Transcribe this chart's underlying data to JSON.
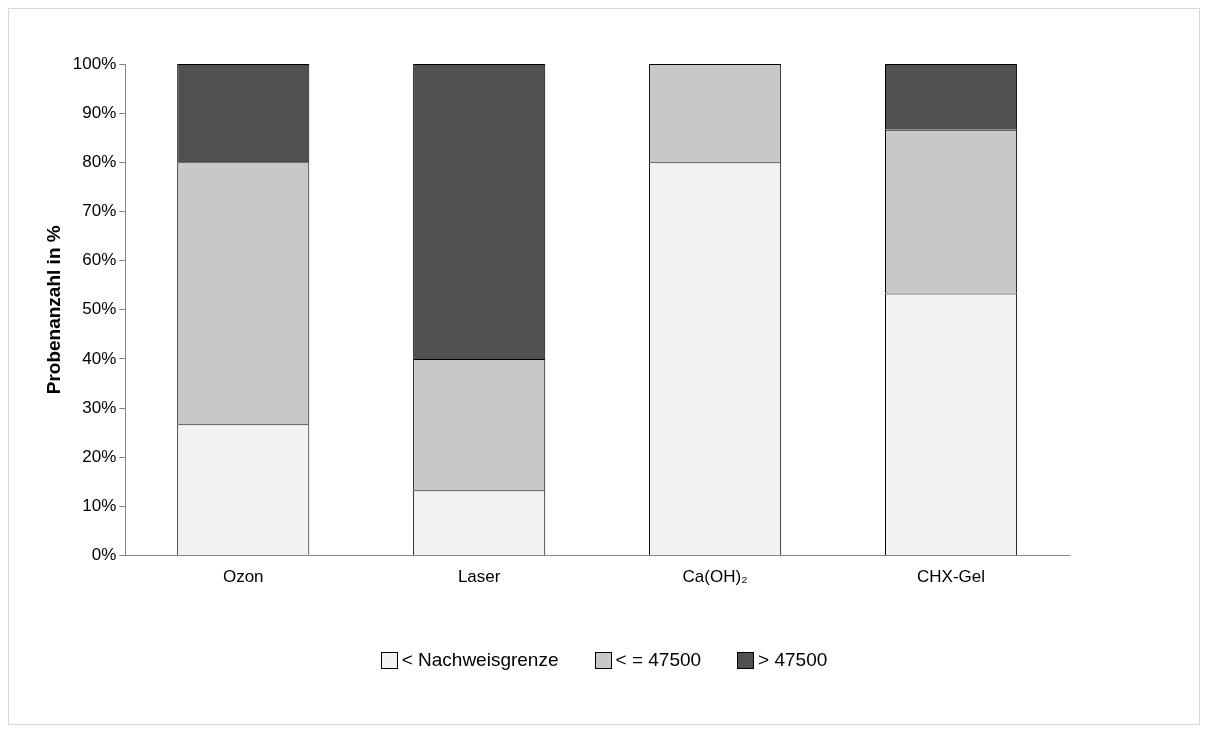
{
  "chart_data": {
    "type": "bar",
    "stacked": true,
    "ylabel": "Probenanzahl in %",
    "categories": [
      "Ozon",
      "Laser",
      "Ca(OH)₂",
      "CHX-Gel"
    ],
    "series": [
      {
        "name": "< Nachweisgrenze",
        "color": "#f2f2f2",
        "values": [
          26.7,
          13.3,
          80,
          53.3
        ]
      },
      {
        "name": "< = 47500",
        "color": "#c8c8c8",
        "values": [
          53.3,
          26.7,
          20,
          33.3
        ]
      },
      {
        "name": "> 47500",
        "color": "#505050",
        "values": [
          20,
          60,
          0,
          13.4
        ]
      }
    ],
    "ylim": [
      0,
      100
    ],
    "yticks": [
      {
        "value": 0,
        "label": "0%"
      },
      {
        "value": 10,
        "label": "10%"
      },
      {
        "value": 20,
        "label": "20%"
      },
      {
        "value": 30,
        "label": "30%"
      },
      {
        "value": 40,
        "label": "40%"
      },
      {
        "value": 50,
        "label": "50%"
      },
      {
        "value": 60,
        "label": "60%"
      },
      {
        "value": 70,
        "label": "70%"
      },
      {
        "value": 80,
        "label": "80%"
      },
      {
        "value": 90,
        "label": "90%"
      },
      {
        "value": 100,
        "label": "100%"
      }
    ],
    "grid": false,
    "legend": "bottom"
  }
}
